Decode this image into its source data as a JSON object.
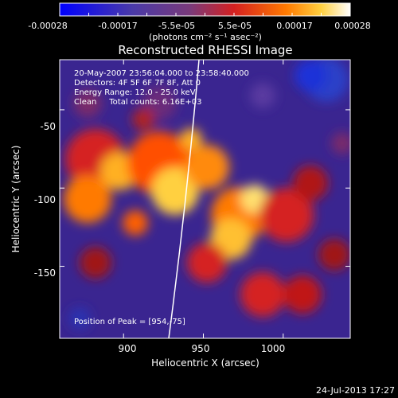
{
  "colorbar": {
    "tick_labels": [
      "-0.00028",
      "-0.00017",
      "-5.5e-05",
      "5.5e-05",
      "0.00017",
      "0.00028"
    ],
    "unit_label": "(photons cm⁻² s⁻¹ asec⁻²)",
    "range": [
      -0.00028,
      0.00028
    ]
  },
  "chart_data": {
    "type": "heatmap",
    "title": "Reconstructed RHESSI Image",
    "xlabel": "Heliocentric X (arcsec)",
    "ylabel": "Heliocentric Y (arcsec)",
    "xlim": [
      860,
      1042
    ],
    "ylim": [
      -196,
      -18
    ],
    "x_ticks": [
      900,
      950,
      1000
    ],
    "y_ticks": [
      -50,
      -100,
      -150
    ],
    "annotations": [
      "20-May-2007 23:56:04.000 to 23:58:40.000",
      "Detectors: 4F 5F 6F 7F 8F, Att 0",
      "Energy Range: 12.0 - 25.0 keV",
      "Clean     Total counts: 6.16E+03"
    ],
    "peak_label": "Position of Peak = [954,-75]",
    "peak": [
      954,
      -75
    ]
  },
  "footer": {
    "timestamp": "24-Jul-2013 17:27"
  }
}
